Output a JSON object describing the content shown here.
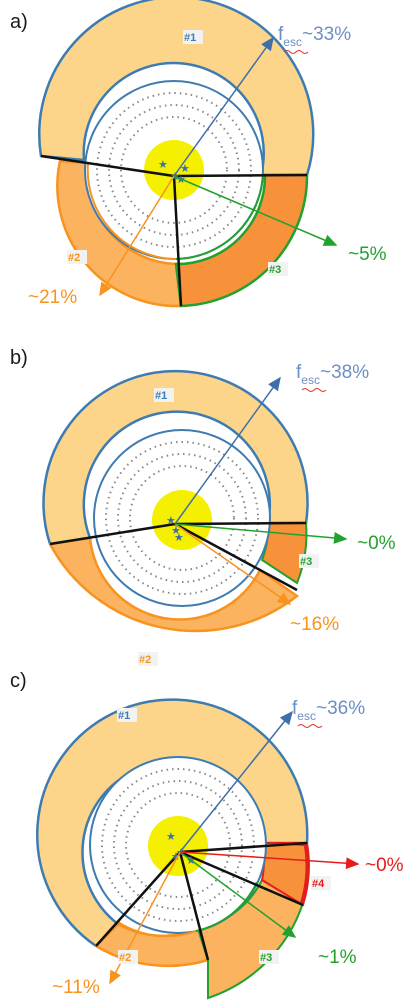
{
  "panels": [
    {
      "label": "a)",
      "fesc": {
        "text": "~33%",
        "sub": "esc"
      },
      "regions": [
        {
          "label": "#1",
          "pct": null
        },
        {
          "label": "#2",
          "pct": "~21%"
        },
        {
          "label": "#3",
          "pct": "~5%"
        }
      ]
    },
    {
      "label": "b)",
      "fesc": {
        "text": "~38%",
        "sub": "esc"
      },
      "regions": [
        {
          "label": "#1",
          "pct": null
        },
        {
          "label": "#2",
          "pct": "~16%"
        },
        {
          "label": "#3",
          "pct": "~0%"
        }
      ]
    },
    {
      "label": "c)",
      "fesc": {
        "text": "~36%",
        "sub": "esc"
      },
      "regions": [
        {
          "label": "#1",
          "pct": null
        },
        {
          "label": "#2",
          "pct": "~11%"
        },
        {
          "label": "#3",
          "pct": "~1%"
        },
        {
          "label": "#4",
          "pct": "~0%"
        }
      ]
    }
  ],
  "fesc_symbol": "f",
  "colors": {
    "outline_blue": "#3e7bb0",
    "light_orange": "#fcd58a",
    "mid_orange": "#fbb35f",
    "deep_orange": "#f7913a",
    "orange_text": "#f7931e",
    "green": "#22a12e",
    "red": "#e51d1d",
    "blue_text": "#6c8fc2",
    "yellow": "#f5ef00",
    "dots": "#888888"
  }
}
